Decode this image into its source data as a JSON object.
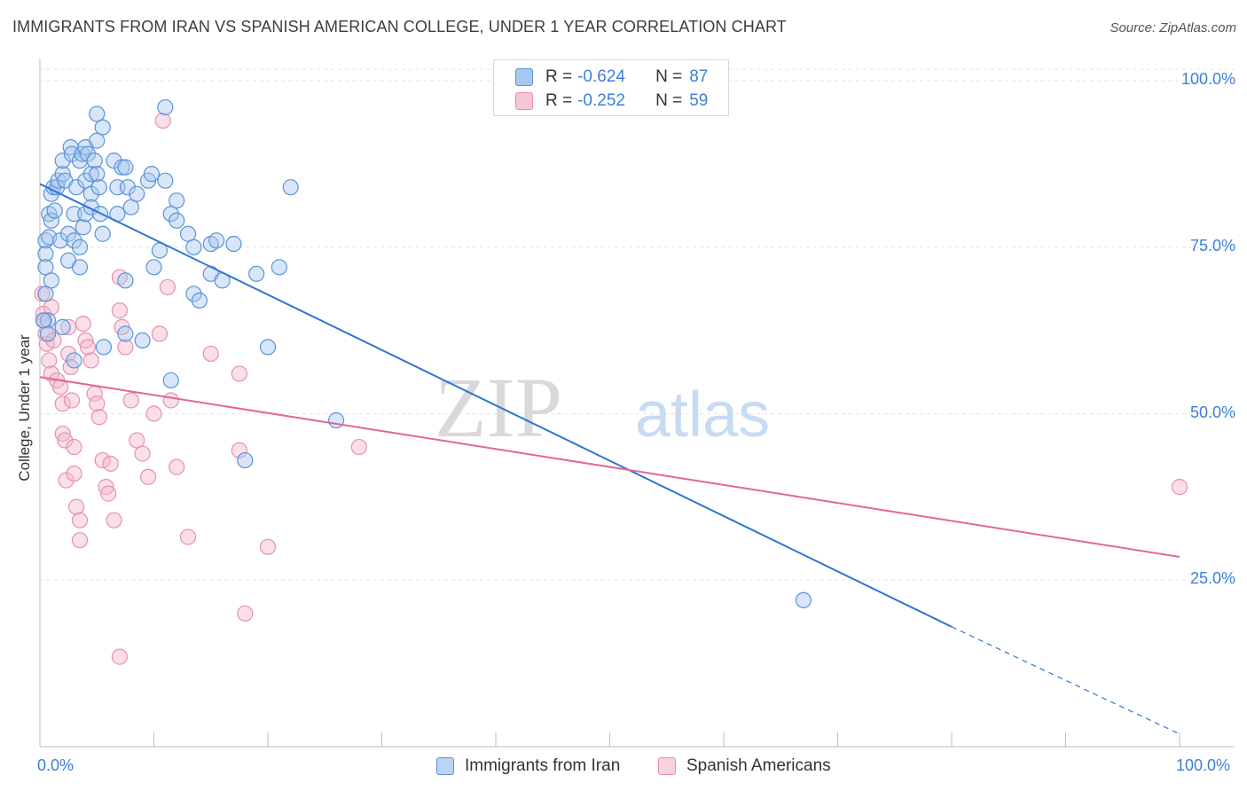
{
  "title": "IMMIGRANTS FROM IRAN VS SPANISH AMERICAN COLLEGE, UNDER 1 YEAR CORRELATION CHART",
  "source": "Source: ZipAtlas.com",
  "watermark": {
    "zip": "ZIP",
    "atlas": "atlas"
  },
  "colors": {
    "blue_fill": "#a9c8ef",
    "blue_stroke": "#5b93d8",
    "blue_line": "#2f76d2",
    "pink_fill": "#f5b8cb",
    "pink_stroke": "#e591ad",
    "pink_line": "#e2688f",
    "accent_text": "#3d7fd6",
    "grid": "#e3e3e3"
  },
  "legend": {
    "rows": [
      {
        "r_label": "R =",
        "r_value": "-0.624",
        "n_label": "N =",
        "n_value": "87",
        "swatch": "blue"
      },
      {
        "r_label": "R =",
        "r_value": "-0.252",
        "n_label": "N =",
        "n_value": "59",
        "swatch": "pink"
      }
    ]
  },
  "bottom_legend": [
    "Immigrants from Iran",
    "Spanish Americans"
  ],
  "chart_data": {
    "type": "scatter",
    "title": "IMMIGRANTS FROM IRAN VS SPANISH AMERICAN COLLEGE, UNDER 1 YEAR CORRELATION CHART",
    "xlabel": "",
    "ylabel": "College, Under 1 year",
    "x_tick_labels": [
      "0.0%",
      "100.0%"
    ],
    "y_tick_labels": [
      "100.0%",
      "75.0%",
      "50.0%",
      "25.0%"
    ],
    "xlim": [
      0,
      100
    ],
    "ylim": [
      0,
      102
    ],
    "y_ticks": [
      100,
      75,
      50,
      25
    ],
    "grid": "horizontal dashed",
    "legend_placement": "top-center",
    "series": [
      {
        "name": "Immigrants from Iran",
        "color": "blue",
        "r": -0.624,
        "n": 87,
        "trend": {
          "x0": 0,
          "y0": 84.5,
          "x1": 80,
          "y1": 18,
          "dashed_to_x": 100,
          "dashed_to_y": 1.9
        },
        "points": [
          [
            0.5,
            76
          ],
          [
            0.5,
            74
          ],
          [
            0.5,
            72
          ],
          [
            0.5,
            68
          ],
          [
            0.7,
            64
          ],
          [
            0.7,
            62
          ],
          [
            0.8,
            76.5
          ],
          [
            0.8,
            80
          ],
          [
            1,
            79
          ],
          [
            1,
            83
          ],
          [
            1,
            70
          ],
          [
            1.2,
            84
          ],
          [
            1.3,
            80.5
          ],
          [
            1.5,
            84
          ],
          [
            1.6,
            85
          ],
          [
            1.8,
            76
          ],
          [
            2,
            63
          ],
          [
            2,
            86
          ],
          [
            2,
            88
          ],
          [
            2.2,
            85
          ],
          [
            2.5,
            77
          ],
          [
            2.5,
            73
          ],
          [
            2.7,
            90
          ],
          [
            2.8,
            89
          ],
          [
            3,
            80
          ],
          [
            3,
            76
          ],
          [
            3,
            58
          ],
          [
            3.2,
            84
          ],
          [
            3.5,
            72
          ],
          [
            3.5,
            88
          ],
          [
            3.5,
            75
          ],
          [
            3.7,
            89
          ],
          [
            3.8,
            78
          ],
          [
            4,
            90
          ],
          [
            4,
            85
          ],
          [
            4,
            80
          ],
          [
            4.2,
            89
          ],
          [
            4.5,
            86
          ],
          [
            4.5,
            83
          ],
          [
            4.5,
            81
          ],
          [
            4.8,
            88
          ],
          [
            5,
            95
          ],
          [
            5,
            91
          ],
          [
            5,
            86
          ],
          [
            5.2,
            84
          ],
          [
            5.3,
            80
          ],
          [
            5.5,
            93
          ],
          [
            5.5,
            77
          ],
          [
            5.6,
            60
          ],
          [
            6.5,
            88
          ],
          [
            6.8,
            84
          ],
          [
            6.8,
            80
          ],
          [
            7.2,
            87
          ],
          [
            7.5,
            87
          ],
          [
            7.5,
            70
          ],
          [
            7.5,
            62
          ],
          [
            7.7,
            84
          ],
          [
            8,
            81
          ],
          [
            8.5,
            83
          ],
          [
            9,
            61
          ],
          [
            9.5,
            85
          ],
          [
            9.8,
            86
          ],
          [
            10,
            72
          ],
          [
            10.5,
            74.5
          ],
          [
            11,
            85
          ],
          [
            11,
            96
          ],
          [
            11.5,
            80
          ],
          [
            11.5,
            55
          ],
          [
            12,
            82
          ],
          [
            12,
            79
          ],
          [
            13,
            77
          ],
          [
            13.5,
            75
          ],
          [
            13.5,
            68
          ],
          [
            14,
            67
          ],
          [
            15,
            75.5
          ],
          [
            15,
            71
          ],
          [
            15.5,
            76
          ],
          [
            16,
            70
          ],
          [
            17,
            75.5
          ],
          [
            18,
            43
          ],
          [
            19,
            71
          ],
          [
            20,
            60
          ],
          [
            21,
            72
          ],
          [
            22,
            84
          ],
          [
            26,
            49
          ],
          [
            67,
            22
          ],
          [
            0.3,
            64
          ]
        ]
      },
      {
        "name": "Spanish Americans",
        "color": "pink",
        "r": -0.252,
        "n": 59,
        "trend": {
          "x0": 0,
          "y0": 55.5,
          "x1": 100,
          "y1": 28.5
        },
        "points": [
          [
            0.2,
            68
          ],
          [
            0.3,
            65
          ],
          [
            0.4,
            64
          ],
          [
            0.5,
            62
          ],
          [
            0.6,
            60.5
          ],
          [
            0.8,
            58
          ],
          [
            1,
            56
          ],
          [
            1,
            66
          ],
          [
            1.2,
            61
          ],
          [
            1.5,
            55
          ],
          [
            1.8,
            54
          ],
          [
            2,
            51.5
          ],
          [
            2,
            47
          ],
          [
            2.2,
            46
          ],
          [
            2.3,
            40
          ],
          [
            2.5,
            63
          ],
          [
            2.5,
            59
          ],
          [
            2.7,
            57
          ],
          [
            2.8,
            52
          ],
          [
            3,
            45
          ],
          [
            3,
            41
          ],
          [
            3.2,
            36
          ],
          [
            3.5,
            34
          ],
          [
            3.5,
            31
          ],
          [
            3.8,
            63.5
          ],
          [
            4,
            61
          ],
          [
            4.2,
            60
          ],
          [
            4.5,
            58
          ],
          [
            4.8,
            53
          ],
          [
            5,
            51.5
          ],
          [
            5.2,
            49.5
          ],
          [
            5.5,
            43
          ],
          [
            5.8,
            39
          ],
          [
            6,
            38
          ],
          [
            6.2,
            42.5
          ],
          [
            6.5,
            34
          ],
          [
            7,
            70.5
          ],
          [
            7,
            65.5
          ],
          [
            7.2,
            63
          ],
          [
            7.5,
            60
          ],
          [
            8,
            52
          ],
          [
            8.5,
            46
          ],
          [
            9,
            44
          ],
          [
            9.5,
            40.5
          ],
          [
            10,
            50
          ],
          [
            10.5,
            62
          ],
          [
            10.8,
            94
          ],
          [
            11.2,
            69
          ],
          [
            11.5,
            52
          ],
          [
            12,
            42
          ],
          [
            13,
            31.5
          ],
          [
            15,
            59
          ],
          [
            17.5,
            56
          ],
          [
            17.5,
            44.5
          ],
          [
            18,
            20
          ],
          [
            20,
            30
          ],
          [
            28,
            45
          ],
          [
            100,
            39
          ],
          [
            7,
            13.5
          ]
        ]
      }
    ]
  }
}
